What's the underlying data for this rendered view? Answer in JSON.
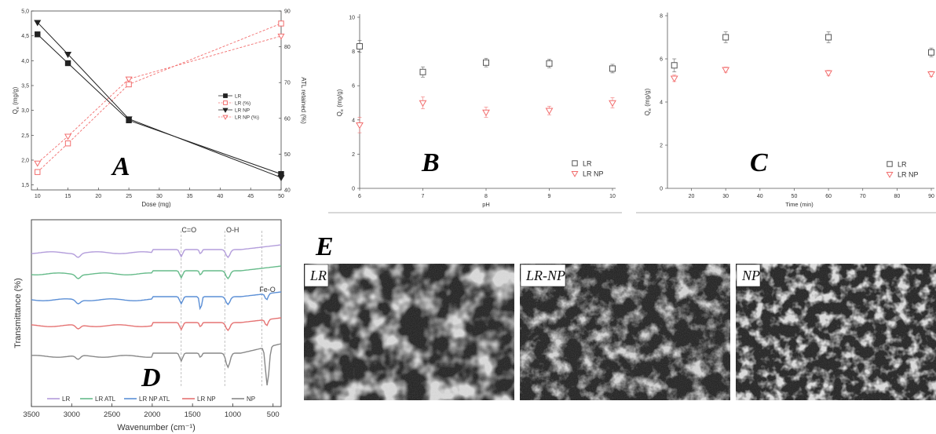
{
  "panels": {
    "A": {
      "letter": "A"
    },
    "B": {
      "letter": "B"
    },
    "C": {
      "letter": "C"
    },
    "D": {
      "letter": "D"
    },
    "E": {
      "letter": "E"
    }
  },
  "chart_data": [
    {
      "id": "A",
      "type": "line",
      "xlabel": "Dose (mg)",
      "ylabel": "Q_e (mg/g)",
      "y2label": "ATL retained (%)",
      "xlim": [
        9,
        50
      ],
      "ylim": [
        1.4,
        5.0
      ],
      "y2lim": [
        40,
        90
      ],
      "xticks": [
        10,
        15,
        20,
        25,
        30,
        35,
        40,
        45,
        50
      ],
      "yticks": [
        "1,5",
        "2,0",
        "2,5",
        "3,0",
        "3,5",
        "4,0",
        "4,5",
        "5,0"
      ],
      "y2ticks": [
        40,
        50,
        60,
        70,
        80,
        90
      ],
      "legend_position": "center-right",
      "series": [
        {
          "name": "LR",
          "axis": "left",
          "marker": "filled-square",
          "line": "solid",
          "color": "#222222",
          "x": [
            10,
            15,
            25,
            50
          ],
          "y": [
            4.53,
            3.95,
            2.8,
            1.72
          ]
        },
        {
          "name": "LR  (%)",
          "axis": "right",
          "marker": "open-square",
          "line": "dashed",
          "color": "#f26d6d",
          "x": [
            10,
            15,
            25,
            50
          ],
          "y": [
            45.0,
            53.0,
            69.5,
            86.5
          ]
        },
        {
          "name": "LR NP",
          "axis": "left",
          "marker": "filled-triangle",
          "line": "solid",
          "color": "#222222",
          "x": [
            10,
            15,
            25,
            50
          ],
          "y": [
            4.77,
            4.13,
            2.83,
            1.65
          ]
        },
        {
          "name": "LR NP (%)",
          "axis": "right",
          "marker": "open-triangle",
          "line": "dashed",
          "color": "#f26d6d",
          "x": [
            10,
            15,
            25,
            50
          ],
          "y": [
            47.5,
            55.0,
            71.0,
            83.0
          ]
        }
      ]
    },
    {
      "id": "B",
      "type": "scatter",
      "xlabel": "pH",
      "ylabel": "Q_e (mg/g)",
      "xlim": [
        6,
        10
      ],
      "ylim": [
        0,
        10
      ],
      "xticks": [
        6,
        7,
        8,
        9,
        10
      ],
      "yticks": [
        0,
        2,
        4,
        6,
        8,
        10
      ],
      "legend_position": "bottom-right",
      "series": [
        {
          "name": "LR",
          "marker": "open-square",
          "color": "#555555",
          "x": [
            6,
            7,
            8,
            9,
            10
          ],
          "y": [
            8.3,
            6.8,
            7.35,
            7.3,
            7.0
          ],
          "err": [
            0.35,
            0.3,
            0.25,
            0.25,
            0.25
          ]
        },
        {
          "name": "LR NP",
          "marker": "open-triangle",
          "color": "#f26d6d",
          "x": [
            6,
            7,
            8,
            9,
            10
          ],
          "y": [
            3.7,
            5.0,
            4.45,
            4.55,
            5.0
          ],
          "err": [
            0.45,
            0.35,
            0.3,
            0.25,
            0.3
          ]
        }
      ]
    },
    {
      "id": "C",
      "type": "scatter",
      "xlabel": "Time (min)",
      "ylabel": "Q_e (mg/g)",
      "xlim": [
        13,
        90
      ],
      "ylim": [
        0,
        8
      ],
      "xticks": [
        20,
        30,
        40,
        50,
        60,
        70,
        80,
        90
      ],
      "yticks": [
        0,
        2,
        4,
        6,
        8
      ],
      "legend_position": "bottom-right",
      "series": [
        {
          "name": "LR",
          "marker": "open-square",
          "color": "#555555",
          "x": [
            15,
            30,
            60,
            90
          ],
          "y": [
            5.7,
            7.0,
            7.0,
            6.3
          ],
          "err": [
            0.3,
            0.25,
            0.25,
            0.2
          ]
        },
        {
          "name": "LR NP",
          "marker": "open-triangle",
          "color": "#f26d6d",
          "x": [
            15,
            30,
            60,
            90
          ],
          "y": [
            5.1,
            5.5,
            5.35,
            5.3
          ],
          "err": [
            0.15,
            0.12,
            0.12,
            0.12
          ]
        }
      ]
    },
    {
      "id": "D",
      "type": "line",
      "xlabel": "Wavenumber (cm⁻¹)",
      "ylabel": "Transmittance (%)",
      "xlim": [
        3500,
        400
      ],
      "xticks": [
        3500,
        3000,
        2500,
        2000,
        1500,
        1000,
        500
      ],
      "annotations": [
        {
          "text": "C=O",
          "x": 1640
        },
        {
          "text": "O-H",
          "x": 1100
        },
        {
          "text": "Fe-O",
          "x": 570
        }
      ],
      "legend_position": "bottom",
      "series": [
        {
          "name": "LR",
          "color": "#b39ddb"
        },
        {
          "name": "LR ATL",
          "color": "#66bb8a"
        },
        {
          "name": "LR NP ATL",
          "color": "#5b8fd6"
        },
        {
          "name": "LR NP",
          "color": "#e57373"
        },
        {
          "name": "NP",
          "color": "#888888"
        }
      ]
    }
  ],
  "sem_images": [
    {
      "label": "LR"
    },
    {
      "label": "LR-NP"
    },
    {
      "label": "NP"
    }
  ]
}
